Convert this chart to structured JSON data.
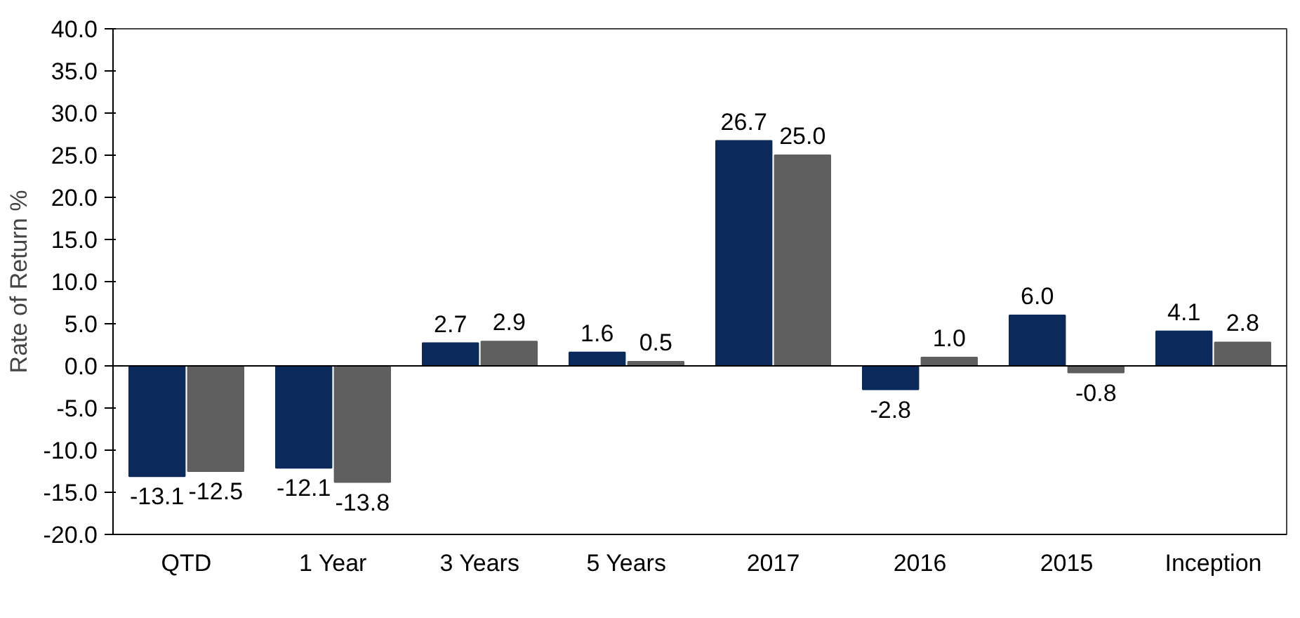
{
  "chart_data": {
    "type": "bar",
    "ylabel": "Rate of Return %",
    "categories": [
      "QTD",
      "1 Year",
      "3 Years",
      "5 Years",
      "2017",
      "2016",
      "2015",
      "Inception"
    ],
    "series": [
      {
        "color": "#0b2a5b",
        "values": [
          -13.1,
          -12.1,
          2.7,
          1.6,
          26.7,
          -2.8,
          6.0,
          4.1
        ],
        "value_labels": [
          "-13.1",
          "-12.1",
          "2.7",
          "1.6",
          "26.7",
          "-2.8",
          "6.0",
          "4.1"
        ]
      },
      {
        "color": "#5f5f5f",
        "values": [
          -12.5,
          -13.8,
          2.9,
          0.5,
          25.0,
          1.0,
          -0.8,
          2.8
        ],
        "value_labels": [
          "-12.5",
          "-13.8",
          "2.9",
          "0.5",
          "25.0",
          "1.0",
          "-0.8",
          "2.8"
        ]
      }
    ],
    "ylim": [
      -20,
      40
    ],
    "yticks": [
      {
        "value": -20,
        "label": "-20.0"
      },
      {
        "value": -15,
        "label": "-15.0"
      },
      {
        "value": -10,
        "label": "-10.0"
      },
      {
        "value": -5,
        "label": "-5.0"
      },
      {
        "value": 0,
        "label": "0.0"
      },
      {
        "value": 5,
        "label": "5.0"
      },
      {
        "value": 10,
        "label": "10.0"
      },
      {
        "value": 15,
        "label": "15.0"
      },
      {
        "value": 20,
        "label": "20.0"
      },
      {
        "value": 25,
        "label": "25.0"
      },
      {
        "value": 30,
        "label": "30.0"
      },
      {
        "value": 35,
        "label": "35.0"
      },
      {
        "value": 40,
        "label": "40.0"
      }
    ],
    "ref_lines": [
      {
        "axis": "y",
        "value": 0,
        "color": "#000000"
      }
    ],
    "grid": false
  }
}
